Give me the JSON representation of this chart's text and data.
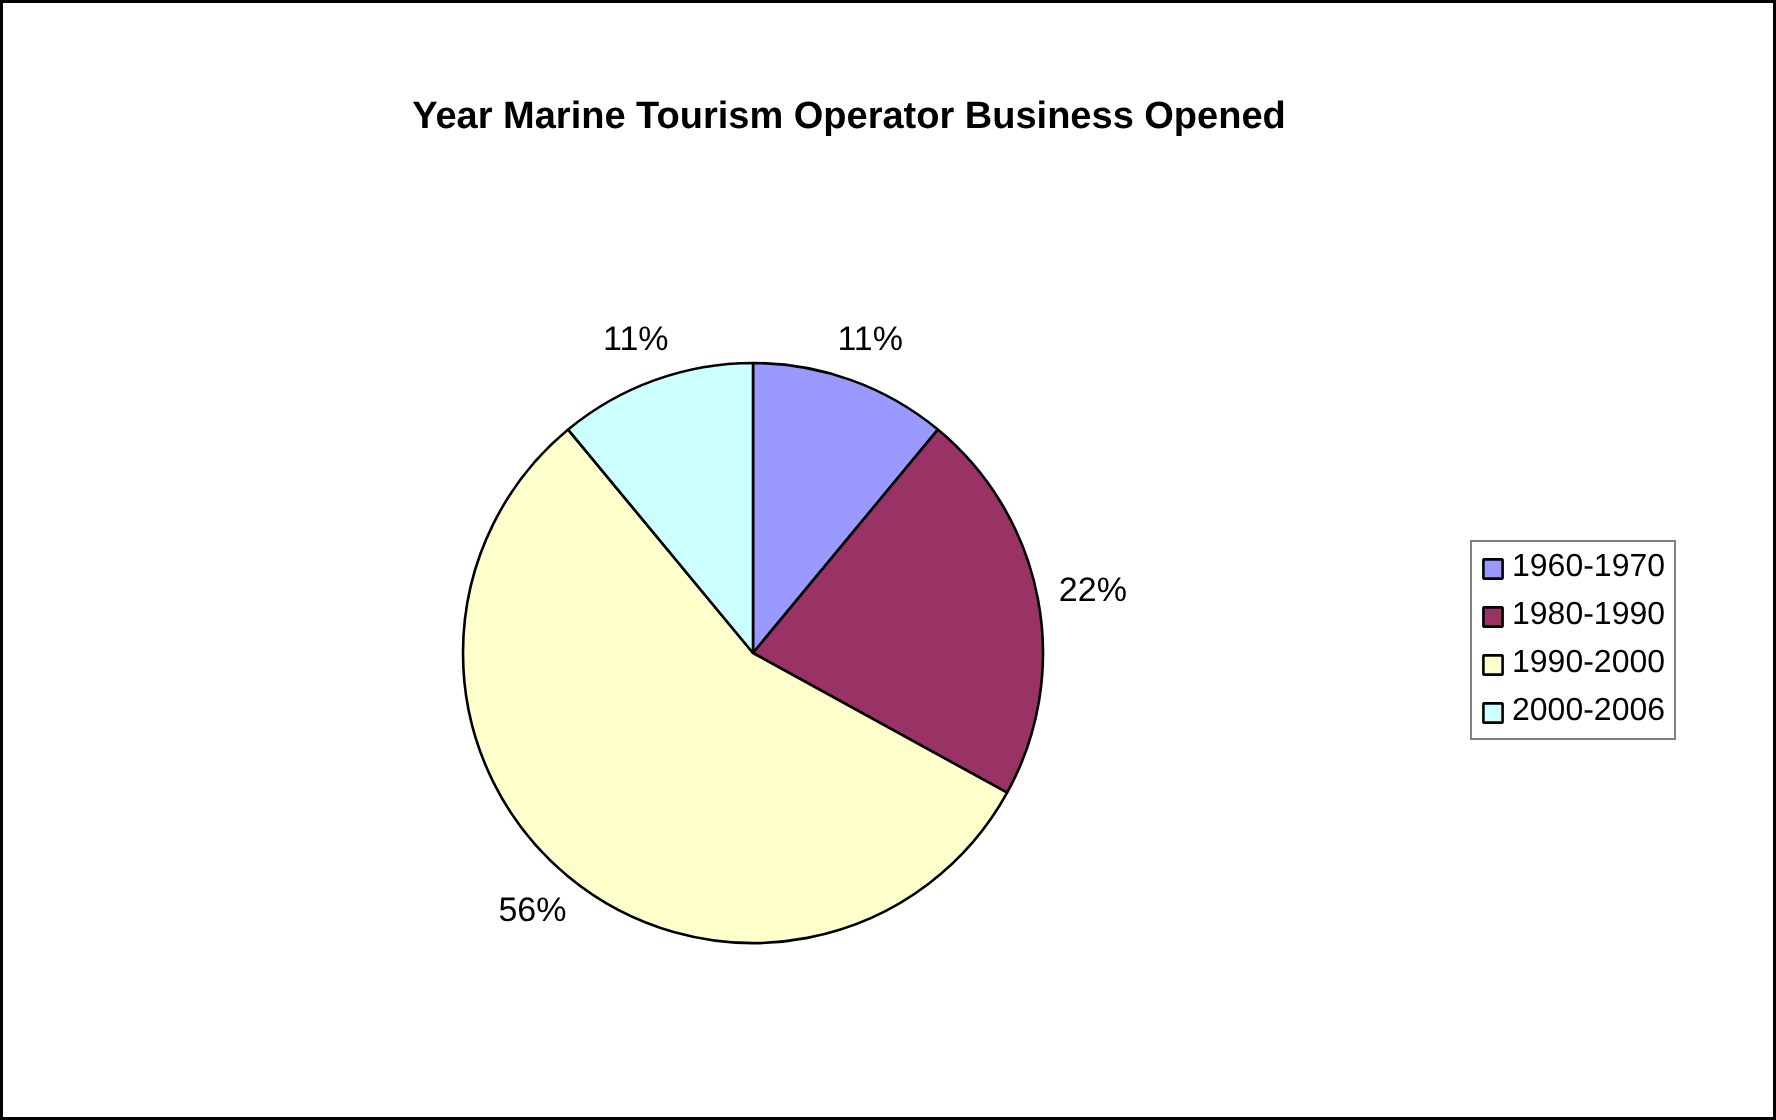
{
  "chart_data": {
    "type": "pie",
    "title": "Year Marine Tourism Operator Business Opened",
    "categories": [
      "1960-1970",
      "1980-1990",
      "1990-2000",
      "2000-2006"
    ],
    "values": [
      11,
      22,
      56,
      11
    ],
    "colors": [
      "#9999ff",
      "#993366",
      "#ffffcc",
      "#ccffff"
    ],
    "value_labels": [
      "11%",
      "22%",
      "56%",
      "11%"
    ],
    "legend": "right"
  }
}
